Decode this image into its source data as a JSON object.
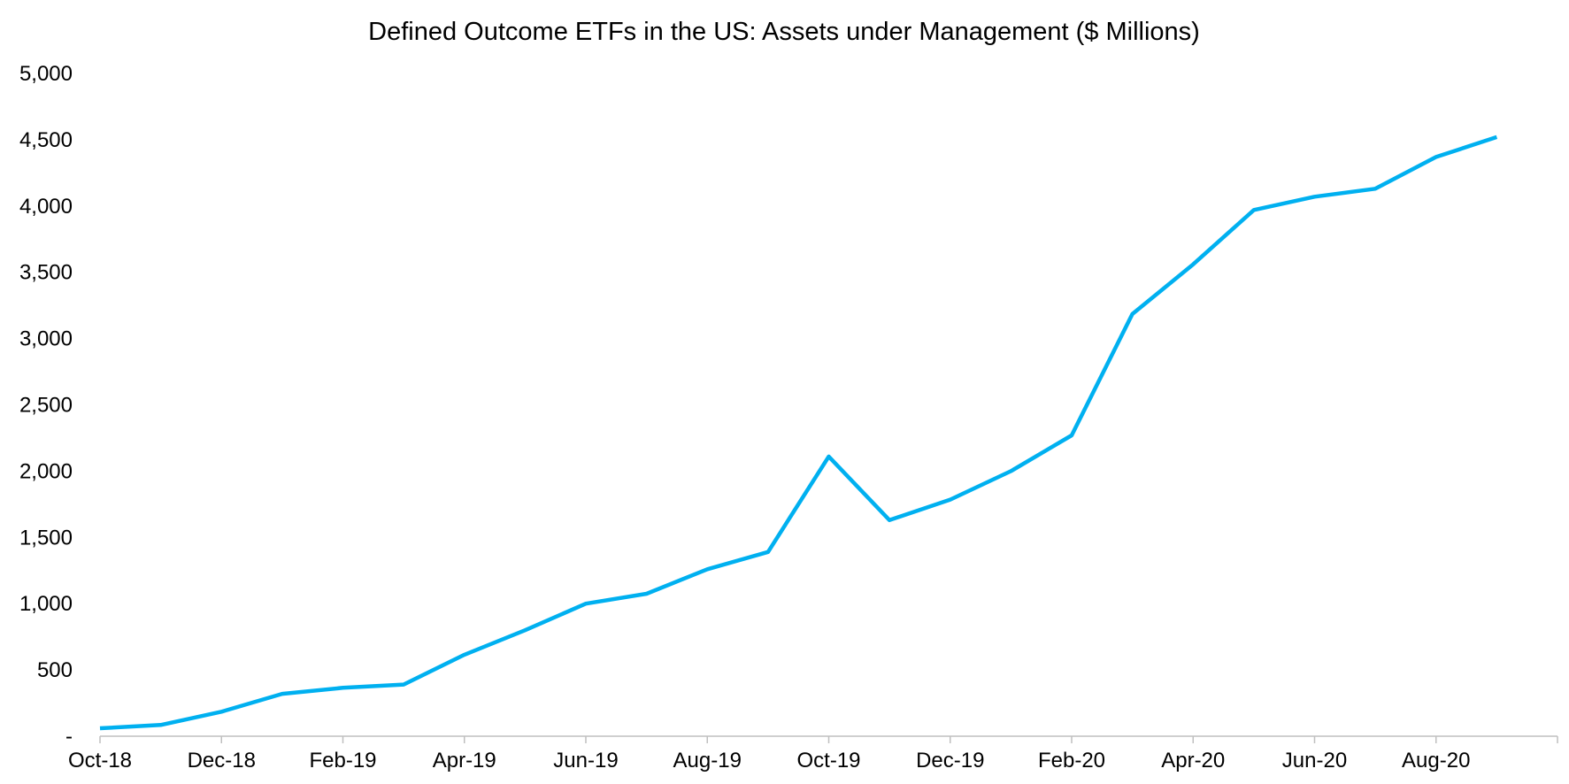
{
  "chart_data": {
    "type": "line",
    "title": "Defined Outcome ETFs in the US: Assets under Management ($ Millions)",
    "xlabel": "",
    "ylabel": "",
    "x": [
      "Oct-18",
      "Nov-18",
      "Dec-18",
      "Jan-19",
      "Feb-19",
      "Mar-19",
      "Apr-19",
      "May-19",
      "Jun-19",
      "Jul-19",
      "Aug-19",
      "Sep-19",
      "Oct-19",
      "Nov-19",
      "Dec-19",
      "Jan-20",
      "Feb-20",
      "Mar-20",
      "Apr-20",
      "May-20",
      "Jun-20",
      "Jul-20",
      "Aug-20",
      "Sep-20"
    ],
    "x_tick_labels": [
      "Oct-18",
      "Dec-18",
      "Feb-19",
      "Apr-19",
      "Jun-19",
      "Aug-19",
      "Oct-19",
      "Dec-19",
      "Feb-20",
      "Apr-20",
      "Jun-20",
      "Aug-20"
    ],
    "y_tick_labels": [
      "-",
      "500",
      "1,000",
      "1,500",
      "2,000",
      "2,500",
      "3,000",
      "3,500",
      "4,000",
      "4,500",
      "5,000"
    ],
    "ylim": [
      0,
      5000
    ],
    "grid": false,
    "legend": "none",
    "series": [
      {
        "color": "#00b0f0",
        "values": [
          60,
          85,
          185,
          320,
          365,
          390,
          615,
          800,
          1000,
          1075,
          1260,
          1390,
          2110,
          1630,
          1785,
          2000,
          2270,
          3185,
          3560,
          3970,
          4070,
          4130,
          4370,
          4520
        ]
      }
    ],
    "axis_color": "#bfbfbf"
  }
}
